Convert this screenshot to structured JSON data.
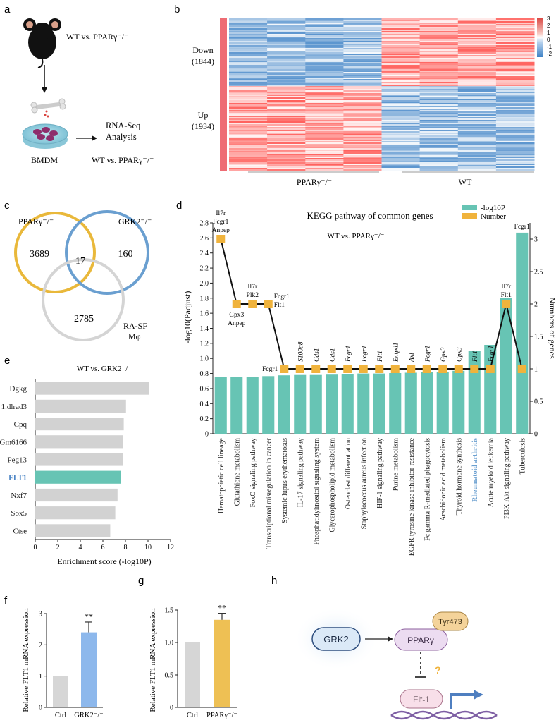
{
  "panel_labels": {
    "a": "a",
    "b": "b",
    "c": "c",
    "d": "d",
    "e": "e",
    "f": "f",
    "g": "g",
    "h": "h"
  },
  "panel_a": {
    "comparison": "WT vs. PPARγ⁻/⁻",
    "cell_label": "BMDM",
    "rnaseq_line1": "RNA-Seq",
    "rnaseq_line2": "Analysis",
    "bottom_comparison": "WT vs. PPARγ⁻/⁻"
  },
  "panel_b": {
    "down_label": "Down",
    "down_count": "(1844)",
    "up_label": "Up",
    "up_count": "(1934)",
    "group1": "PPARγ⁻/⁻",
    "group2": "WT",
    "scale_ticks": [
      "3",
      "2",
      "1",
      "0",
      "-1",
      "-2"
    ],
    "colors": {
      "high": "#d9443f",
      "mid": "#ffffff",
      "low": "#3e82c6",
      "bar": "#ee6c74"
    }
  },
  "panel_c": {
    "set1": "PPARγ⁻/⁻",
    "set2": "GRK2⁻/⁻",
    "set3_line1": "RA-SF",
    "set3_line2": "Mφ",
    "n1": "3689",
    "n2": "160",
    "n3": "2785",
    "n_center": "17",
    "colors": {
      "set1": "#e9b83a",
      "set2": "#6a9fd0",
      "set3": "#cfcfcf"
    }
  },
  "chart_data": [
    {
      "id": "kegg",
      "type": "bar",
      "title": "KEGG pathway of common genes",
      "subtitle": "WT vs. PPARγ⁻/⁻",
      "ylabel": "-log10(Padjust)",
      "y2label": "Numbers of genes",
      "legend_bar": "-log10P",
      "legend_line": "Number",
      "ylim": [
        0,
        2.8
      ],
      "y2lim": [
        0,
        3.25
      ],
      "yticks": [
        "0",
        "0.2",
        "0.4",
        "0.6",
        "0.8",
        "1.0",
        "1.2",
        "1.4",
        "1.6",
        "1.8",
        "2.0",
        "2.2",
        "2.4",
        "2.6",
        "2.8"
      ],
      "y2ticks": [
        "0",
        "0.5",
        "1",
        "1.5",
        "2",
        "2.5",
        "3"
      ],
      "highlight_category": "Rheumatoid arthritis",
      "categories": [
        "Hematopoietic cell lineage",
        "Glutathione metabolism",
        "FoxO signaling pathway",
        "Transcriptional misregulation in cancer",
        "Systemic lupus erythematosus",
        "IL-17 signaling pathway",
        "Phosphatidylinositol signaling system",
        "Glycerophospholipid metabolism",
        "Osteoclast differentiation",
        "Staphylococcus aureus infection",
        "HIF-1 signaling pathway",
        "Purine metabolism",
        "EGFR tyrosine kinase inhibitor resistance",
        "Fc gamma R-mediated phagocytosis",
        "Arachidonic acid metabolism",
        "Thyroid hormone synthesis",
        "Rheumatoid arthritis",
        "Acute myeloid leukemia",
        "PI3K-Akt signaling pathway",
        "Tuberculosis"
      ],
      "values": [
        0.75,
        0.75,
        0.755,
        0.765,
        0.775,
        0.78,
        0.78,
        0.785,
        0.795,
        0.8,
        0.8,
        0.805,
        0.81,
        0.815,
        0.82,
        0.835,
        1.1,
        1.18,
        1.8,
        2.67
      ],
      "gene_counts": [
        3,
        2,
        2,
        2,
        1,
        1,
        1,
        1,
        1,
        1,
        1,
        1,
        1,
        1,
        1,
        1,
        1,
        1,
        2,
        1
      ],
      "genes": [
        "Il7r\nFcgr1\nAnpep",
        "Gpx3\nAnpep",
        "Il7r\nPlk2",
        "Fcgr1\nFlt1",
        "Fcgr1",
        "S100a8",
        "Cds1",
        "Cds1",
        "Fcgr1",
        "Fcgr1",
        "Flt1",
        "Entpd1",
        "Axl",
        "Fcgr1",
        "Gpx3",
        "Gpx3",
        "Flt1",
        "Fcgr1",
        "Il7r\nFlt1",
        "Fcgr1"
      ],
      "colors": {
        "bar": "#67c4b4",
        "line": "#111111",
        "marker": "#f0b33c",
        "highlight": "#6a9fd0"
      }
    },
    {
      "id": "enrichment",
      "type": "bar",
      "orientation": "horizontal",
      "title": "WT vs. GRK2⁻/⁻",
      "xlabel": "Enrichment score (-log10P)",
      "xlim": [
        0,
        12
      ],
      "xticks": [
        "0",
        "2",
        "4",
        "6",
        "8",
        "10",
        "12"
      ],
      "categories": [
        "Dgkg",
        "1.dlrad3",
        "Cpq",
        "Gm6166",
        "Peg13",
        "FLT1",
        "Nxf7",
        "Sox5",
        "Ctse"
      ],
      "values": [
        10.1,
        8.05,
        7.85,
        7.8,
        7.75,
        7.6,
        7.3,
        7.1,
        6.65
      ],
      "highlight_category": "FLT1",
      "colors": {
        "bar": "#d2d2d2",
        "highlight": "#67c4b4",
        "label_highlight": "#4d86c6"
      }
    },
    {
      "id": "flt1_grk2",
      "type": "bar",
      "ylabel": "Relative FLT1 mRNA expression",
      "categories": [
        "Ctrl",
        "GRK2⁻/⁻"
      ],
      "values": [
        1.0,
        2.4
      ],
      "errors": [
        0,
        0.33
      ],
      "significance": "**",
      "ylim": [
        0,
        3
      ],
      "yticks": [
        "0",
        "1",
        "2",
        "3"
      ],
      "colors": [
        "#d6d6d6",
        "#8db8ec"
      ]
    },
    {
      "id": "flt1_ppar",
      "type": "bar",
      "ylabel": "Relative FLT1 mRNA expression",
      "categories": [
        "Ctrl",
        "PPARγ⁻/⁻"
      ],
      "values": [
        1.0,
        1.35
      ],
      "errors": [
        0,
        0.1
      ],
      "significance": "**",
      "ylim": [
        0,
        1.5
      ],
      "yticks": [
        "0",
        "0.5",
        "1.0",
        "1.5"
      ],
      "colors": [
        "#d6d6d6",
        "#eec054"
      ]
    }
  ],
  "panel_h": {
    "grk2": "GRK2",
    "ppar": "PPARγ",
    "tyr": "Tyr473",
    "question": "?",
    "flt1": "Flt-1"
  }
}
